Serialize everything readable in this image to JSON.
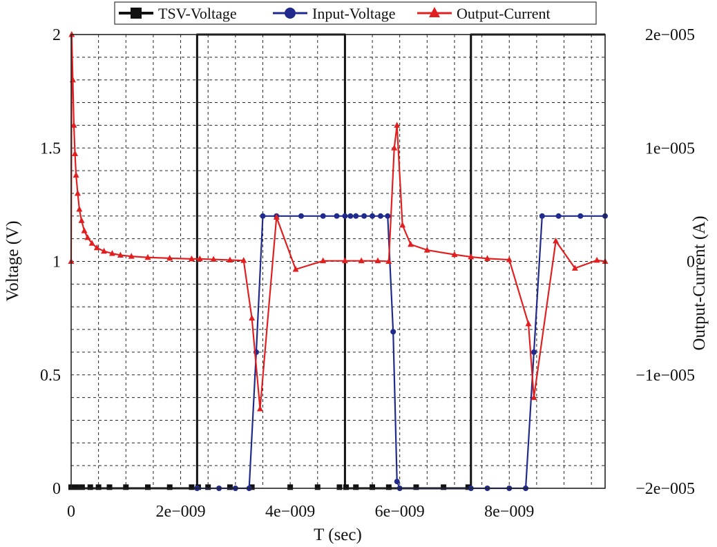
{
  "chart_data": {
    "type": "line",
    "xlabel": "T (sec)",
    "ylabel": "Voltage (V)",
    "y2label": "Output-Current (A)",
    "xlim": [
      0,
      9.75e-09
    ],
    "ylim": [
      0,
      2
    ],
    "y2lim": [
      -2e-05,
      2e-05
    ],
    "grid": true,
    "legend_position": "top",
    "x_ticks": [
      {
        "value": 0,
        "label": "0"
      },
      {
        "value": 2e-09,
        "label": "2e−009"
      },
      {
        "value": 4e-09,
        "label": "4e−009"
      },
      {
        "value": 6e-09,
        "label": "6e−009"
      },
      {
        "value": 8e-09,
        "label": "8e−009"
      }
    ],
    "y_ticks": [
      {
        "value": 0,
        "label": "0"
      },
      {
        "value": 0.5,
        "label": "0.5"
      },
      {
        "value": 1,
        "label": "1"
      },
      {
        "value": 1.5,
        "label": "1.5"
      },
      {
        "value": 2,
        "label": "2"
      }
    ],
    "y2_ticks": [
      {
        "value": -2e-05,
        "label": "−2e−005"
      },
      {
        "value": -1e-05,
        "label": "−1e−005"
      },
      {
        "value": 0,
        "label": "0"
      },
      {
        "value": 1e-05,
        "label": "1e−005"
      },
      {
        "value": 2e-05,
        "label": "2e−005"
      }
    ],
    "series": [
      {
        "name": "TSV-Voltage",
        "color": "#111111",
        "marker": "square",
        "axis": "left",
        "x": [
          0,
          2.3e-09,
          2.3e-09,
          5e-09,
          5e-09,
          7.3e-09,
          7.3e-09,
          9.75e-09
        ],
        "y": [
          0,
          0,
          2,
          2,
          0,
          0,
          2,
          2
        ],
        "marker_x": [
          0,
          1e-10,
          2e-10,
          3.5e-10,
          5e-10,
          7e-10,
          1e-09,
          1.4e-09,
          1.8e-09,
          2.2e-09,
          2.32e-09,
          2.5e-09,
          2.9e-09,
          3.3e-09,
          4e-09,
          4.5e-09,
          4.9e-09,
          5.02e-09,
          5.2e-09,
          5.5e-09,
          5.8e-09,
          6.3e-09,
          6.8e-09,
          7.25e-09
        ],
        "marker_y": [
          0.005,
          0.005,
          0.005,
          0.005,
          0.005,
          0.005,
          0.005,
          0.005,
          0.005,
          0.005,
          0.005,
          0.005,
          0.005,
          0.005,
          0.005,
          0.005,
          0.005,
          0.005,
          0.005,
          0.005,
          0.005,
          0.005,
          0.005,
          0.005
        ]
      },
      {
        "name": "Input-Voltage",
        "color": "#1f2a8c",
        "marker": "circle",
        "axis": "left",
        "x": [
          2.3e-09,
          2.7e-09,
          3e-09,
          3.25e-09,
          3.38e-09,
          3.5e-09,
          3.75e-09,
          4.2e-09,
          4.6e-09,
          4.85e-09,
          5e-09,
          5.1e-09,
          5.2e-09,
          5.35e-09,
          5.5e-09,
          5.65e-09,
          5.78e-09,
          5.88e-09,
          5.95e-09,
          6e-09,
          7.3e-09,
          7.6e-09,
          8e-09,
          8.3e-09,
          8.45e-09,
          8.6e-09,
          8.9e-09,
          9.3e-09,
          9.75e-09
        ],
        "y": [
          0,
          0,
          0,
          0,
          0.6,
          1.2,
          1.2,
          1.2,
          1.2,
          1.2,
          1.2,
          1.2,
          1.2,
          1.2,
          1.2,
          1.2,
          1.2,
          0.69,
          0.03,
          0,
          0,
          0,
          0,
          0,
          0.6,
          1.2,
          1.2,
          1.2,
          1.2
        ]
      },
      {
        "name": "Output-Current",
        "color": "#e02020",
        "marker": "triangle",
        "axis": "right",
        "x": [
          0,
          1e-11,
          3e-11,
          5e-11,
          7e-11,
          9e-11,
          1.2e-10,
          1.5e-10,
          1.9e-10,
          2.4e-10,
          3e-10,
          3.8e-10,
          4.7e-10,
          6e-10,
          7.5e-10,
          9e-10,
          1.1e-09,
          1.4e-09,
          1.8e-09,
          2.2e-09,
          2.35e-09,
          2.6e-09,
          2.9e-09,
          3.15e-09,
          3.3e-09,
          3.45e-09,
          3.75e-09,
          4.1e-09,
          4.6e-09,
          5e-09,
          5.3e-09,
          5.6e-09,
          5.8e-09,
          5.9e-09,
          5.95e-09,
          6.05e-09,
          6.2e-09,
          6.5e-09,
          7e-09,
          7.3e-09,
          7.6e-09,
          8e-09,
          8.35e-09,
          8.45e-09,
          8.85e-09,
          9.2e-09,
          9.6e-09,
          9.75e-09
        ],
        "y": [
          0,
          2e-05,
          1.6e-05,
          1.2e-05,
          9.5e-06,
          7.6e-06,
          6e-06,
          4.6e-06,
          3.6e-06,
          2.7e-06,
          2.1e-06,
          1.6e-06,
          1.2e-06,
          9e-07,
          7e-07,
          5.5e-07,
          4.5e-07,
          3.5e-07,
          2.8e-07,
          2.2e-07,
          2.2e-07,
          1.8e-07,
          1.2e-07,
          8e-08,
          -5e-06,
          -1.3e-05,
          3.9e-06,
          -7e-07,
          5e-08,
          5e-08,
          5e-08,
          5e-08,
          0.0,
          1e-05,
          1.2e-05,
          3.2e-06,
          1.5e-06,
          1e-06,
          6e-07,
          4e-07,
          2.5e-07,
          1.5e-07,
          -5.5e-06,
          -1.2e-05,
          1.8e-06,
          -6e-07,
          1e-07,
          0.0
        ]
      }
    ]
  }
}
